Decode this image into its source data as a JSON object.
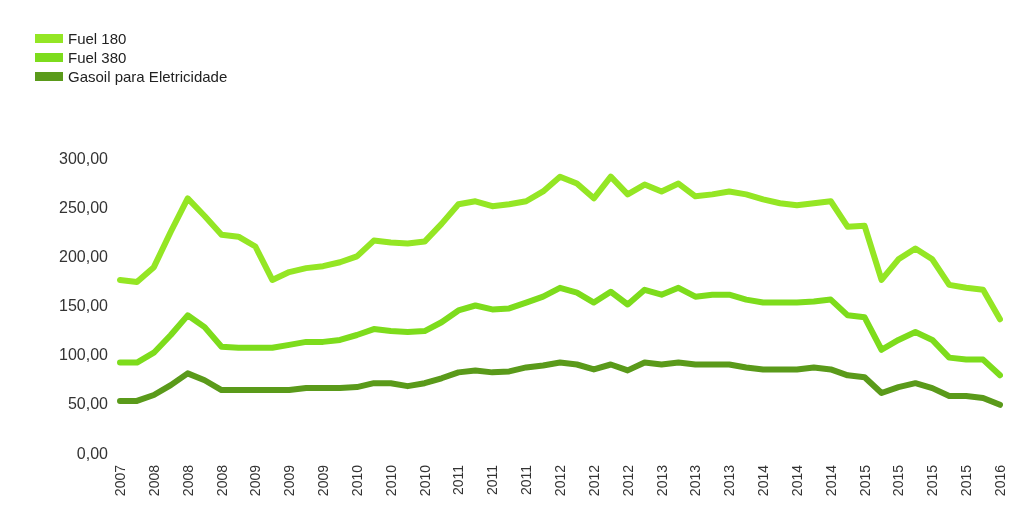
{
  "chart_data": {
    "type": "line",
    "categories": [
      "2007",
      null,
      "2008",
      null,
      "2008",
      null,
      "2008",
      null,
      "2009",
      null,
      "2009",
      null,
      "2009",
      null,
      "2010",
      null,
      "2010",
      null,
      "2010",
      null,
      "2011",
      null,
      "2011",
      null,
      "2011",
      null,
      "2012",
      null,
      "2012",
      null,
      "2012",
      null,
      "2013",
      null,
      "2013",
      null,
      "2013",
      null,
      "2014",
      null,
      "2014",
      null,
      "2014",
      null,
      "2015",
      null,
      "2015",
      null,
      "2015",
      null,
      "2015",
      null,
      "2016"
    ],
    "series": [
      {
        "name": "Fuel 180",
        "color": "#94e624",
        "values": [
          176,
          174,
          189,
          225,
          259,
          241,
          222,
          220,
          210,
          176,
          184,
          188,
          190,
          194,
          200,
          216,
          214,
          213,
          215,
          233,
          253,
          256,
          251,
          253,
          256,
          266,
          281,
          274,
          259,
          281,
          263,
          273,
          266,
          274,
          261,
          263,
          266,
          263,
          258,
          254,
          252,
          254,
          256,
          230,
          231,
          176,
          197,
          208,
          197,
          171,
          168,
          166,
          136
        ]
      },
      {
        "name": "Fuel 380",
        "color": "#7ddc1c",
        "values": [
          92,
          92,
          102,
          120,
          140,
          128,
          108,
          107,
          107,
          107,
          110,
          113,
          113,
          115,
          120,
          126,
          124,
          123,
          124,
          133,
          145,
          150,
          146,
          147,
          153,
          159,
          168,
          163,
          153,
          164,
          151,
          166,
          161,
          168,
          159,
          161,
          161,
          156,
          153,
          153,
          153,
          154,
          156,
          140,
          138,
          105,
          115,
          123,
          115,
          97,
          95,
          95,
          79
        ]
      },
      {
        "name": "Gasoil para Eletricidade",
        "color": "#5a9a1a",
        "values": [
          53,
          53,
          59,
          69,
          81,
          74,
          64,
          64,
          64,
          64,
          64,
          66,
          66,
          66,
          67,
          71,
          71,
          68,
          71,
          76,
          82,
          84,
          82,
          83,
          87,
          89,
          92,
          90,
          85,
          90,
          84,
          92,
          90,
          92,
          90,
          90,
          90,
          87,
          85,
          85,
          85,
          87,
          85,
          79,
          77,
          61,
          67,
          71,
          66,
          58,
          58,
          56,
          49
        ]
      }
    ],
    "ylim": [
      0,
      300
    ],
    "yticks": [
      {
        "value": 0,
        "label": "0,00"
      },
      {
        "value": 50,
        "label": "50,00"
      },
      {
        "value": 100,
        "label": "100,00"
      },
      {
        "value": 150,
        "label": "150,00"
      },
      {
        "value": 200,
        "label": "200,00"
      },
      {
        "value": 250,
        "label": "250,00"
      },
      {
        "value": 300,
        "label": "300,00"
      }
    ],
    "grid": false,
    "legend": "top left",
    "marker": "none",
    "line_style": "solid"
  }
}
